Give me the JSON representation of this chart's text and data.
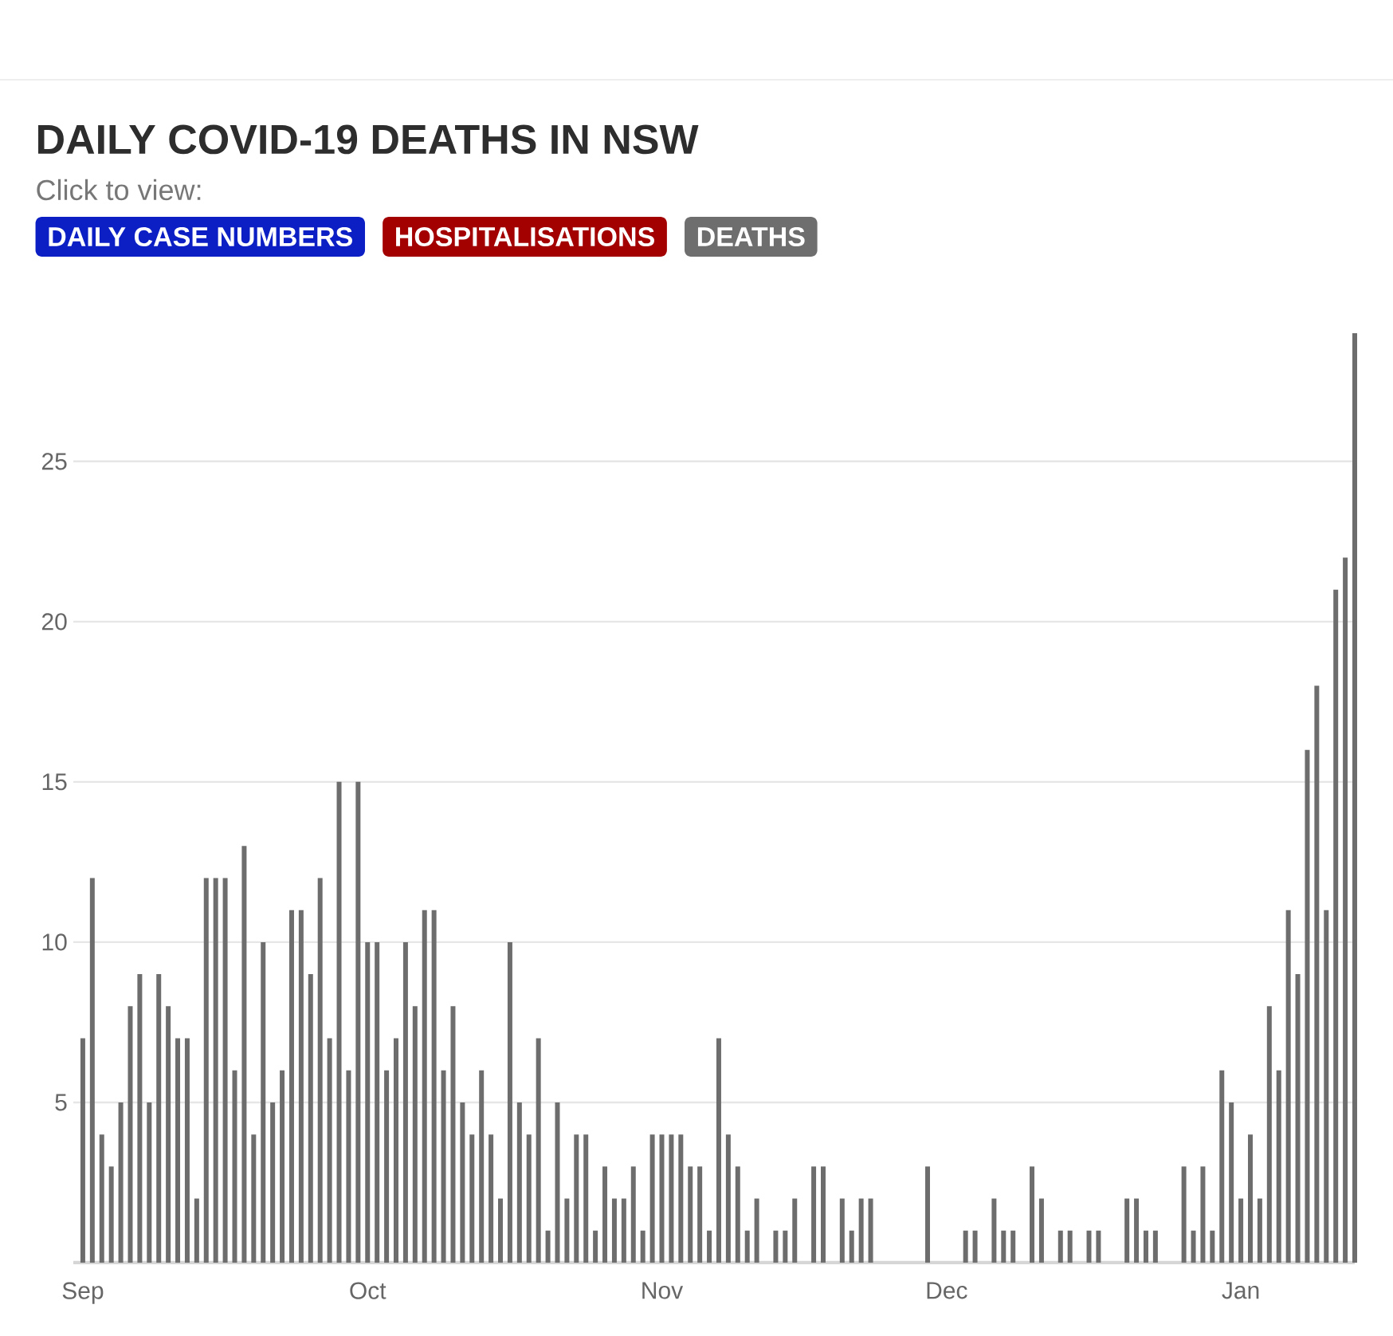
{
  "chart_data": {
    "type": "bar",
    "title": "DAILY COVID-19 DEATHS IN NSW",
    "subtitle": "Click to view:",
    "annotations": [
      "DAILY CASE NUMBERS",
      "HOSPITALISATIONS",
      "DEATHS"
    ],
    "categories": [
      "Sep",
      null,
      null,
      null,
      null,
      null,
      null,
      null,
      null,
      null,
      null,
      null,
      null,
      null,
      null,
      null,
      null,
      null,
      null,
      null,
      null,
      null,
      null,
      null,
      null,
      null,
      null,
      null,
      null,
      null,
      "Oct",
      null,
      null,
      null,
      null,
      null,
      null,
      null,
      null,
      null,
      null,
      null,
      null,
      null,
      null,
      null,
      null,
      null,
      null,
      null,
      null,
      null,
      null,
      null,
      null,
      null,
      null,
      null,
      null,
      null,
      null,
      "Nov",
      null,
      null,
      null,
      null,
      null,
      null,
      null,
      null,
      null,
      null,
      null,
      null,
      null,
      null,
      null,
      null,
      null,
      null,
      null,
      null,
      null,
      null,
      null,
      null,
      null,
      null,
      null,
      null,
      null,
      "Dec",
      null,
      null,
      null,
      null,
      null,
      null,
      null,
      null,
      null,
      null,
      null,
      null,
      null,
      null,
      null,
      null,
      null,
      null,
      null,
      null,
      null,
      null,
      null,
      null,
      null,
      null,
      null,
      null,
      null,
      null,
      "Jan",
      null,
      null,
      null,
      null,
      null,
      null,
      null,
      null,
      null,
      null,
      null,
      null
    ],
    "values": [
      7,
      12,
      4,
      3,
      5,
      8,
      9,
      5,
      9,
      8,
      7,
      7,
      2,
      12,
      12,
      12,
      6,
      13,
      4,
      10,
      5,
      6,
      11,
      11,
      9,
      12,
      7,
      15,
      6,
      15,
      10,
      10,
      6,
      7,
      10,
      8,
      11,
      11,
      6,
      8,
      5,
      4,
      6,
      4,
      2,
      10,
      5,
      4,
      7,
      1,
      5,
      2,
      4,
      4,
      1,
      3,
      2,
      2,
      3,
      1,
      4,
      4,
      4,
      4,
      3,
      3,
      1,
      7,
      4,
      3,
      1,
      2,
      0,
      1,
      1,
      2,
      0,
      3,
      3,
      0,
      2,
      1,
      2,
      2,
      0,
      0,
      0,
      0,
      0,
      3,
      0,
      0,
      0,
      1,
      1,
      0,
      2,
      1,
      1,
      0,
      3,
      2,
      0,
      1,
      1,
      0,
      1,
      1,
      0,
      0,
      2,
      2,
      1,
      1,
      0,
      0,
      3,
      1,
      3,
      1,
      6,
      5,
      2,
      4,
      2,
      8,
      6,
      11,
      9,
      16,
      18,
      11,
      21,
      22,
      29
    ],
    "color": "#6d6d6d",
    "ylim": [
      0,
      29
    ],
    "yticks": [
      5,
      10,
      15,
      20,
      25
    ],
    "grid": "y"
  }
}
